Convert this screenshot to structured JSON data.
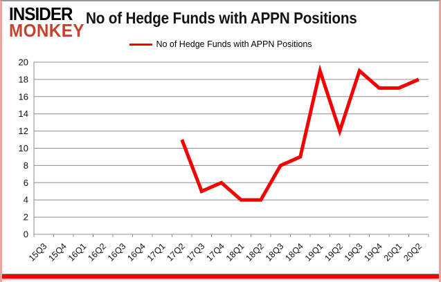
{
  "branding": {
    "logo_line1": "INSIDER",
    "logo_line2": "MONKEY",
    "logo_accent_color": "#c6402e"
  },
  "header": {
    "title": "No of Hedge Funds with APPN Positions"
  },
  "legend": {
    "label": "No of Hedge Funds with APPN Positions",
    "line_color": "#f40000"
  },
  "chart_data": {
    "type": "line",
    "title": "No of Hedge Funds with APPN Positions",
    "categories": [
      "15Q3",
      "15Q4",
      "16Q1",
      "16Q2",
      "16Q3",
      "16Q4",
      "17Q1",
      "17Q2",
      "17Q3",
      "17Q4",
      "18Q1",
      "18Q2",
      "18Q3",
      "18Q4",
      "19Q1",
      "19Q2",
      "19Q3",
      "19Q4",
      "20Q1",
      "20Q2"
    ],
    "series": [
      {
        "name": "No of Hedge Funds with APPN Positions",
        "color": "#f40000",
        "line_width": 5,
        "values": [
          null,
          null,
          null,
          null,
          null,
          null,
          null,
          11,
          5,
          6,
          4,
          4,
          8,
          9,
          19,
          12,
          19,
          17,
          17,
          18
        ]
      }
    ],
    "xlabel": "",
    "ylabel": "",
    "ylim": [
      0,
      20
    ],
    "ytick_step": 2,
    "grid": true,
    "grid_color": "#8c8c8c",
    "text_color": "#111111",
    "legend_position": "top"
  },
  "frame": {
    "bottom_bar_color": "#f40000"
  }
}
